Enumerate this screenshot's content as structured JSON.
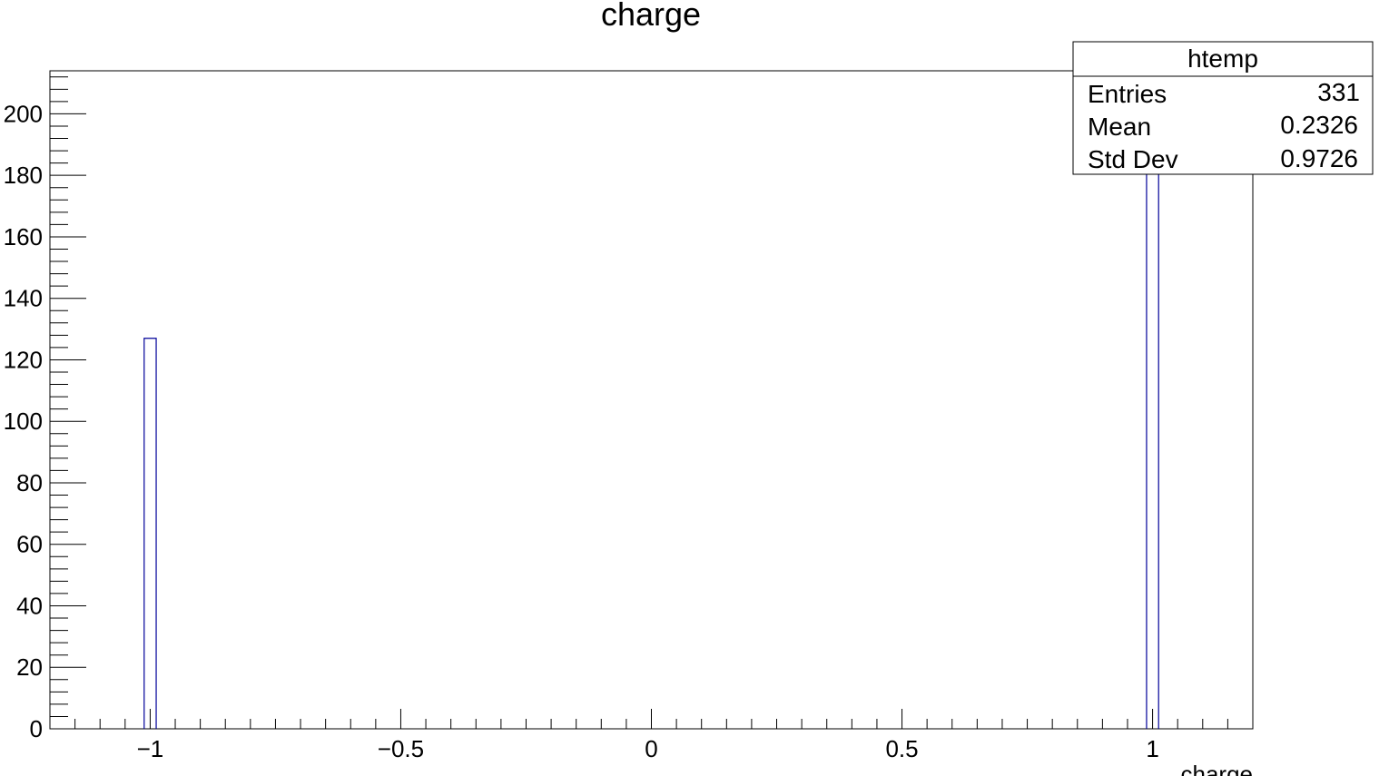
{
  "chart_data": {
    "type": "bar",
    "title": "charge",
    "xlabel": "charge",
    "ylabel": "",
    "xlim": [
      -1.2,
      1.2
    ],
    "ylim": [
      0,
      214
    ],
    "grid": false,
    "x_ticks": [
      {
        "value": -1,
        "label": "−1"
      },
      {
        "value": -0.5,
        "label": "−0.5"
      },
      {
        "value": 0,
        "label": "0"
      },
      {
        "value": 0.5,
        "label": "0.5"
      },
      {
        "value": 1,
        "label": "1"
      }
    ],
    "y_ticks": [
      0,
      20,
      40,
      60,
      80,
      100,
      120,
      140,
      160,
      180,
      200
    ],
    "bin_width": 0.024,
    "bins": [
      {
        "center": -1.0,
        "value": 127
      },
      {
        "center": 1.0,
        "value": 204
      }
    ],
    "line_color": "#000099"
  },
  "stats_box": {
    "title": "htemp",
    "rows": [
      {
        "label": "Entries",
        "value": "331"
      },
      {
        "label": "Mean",
        "value": "0.2326"
      },
      {
        "label": "Std Dev",
        "value": "0.9726"
      }
    ]
  }
}
